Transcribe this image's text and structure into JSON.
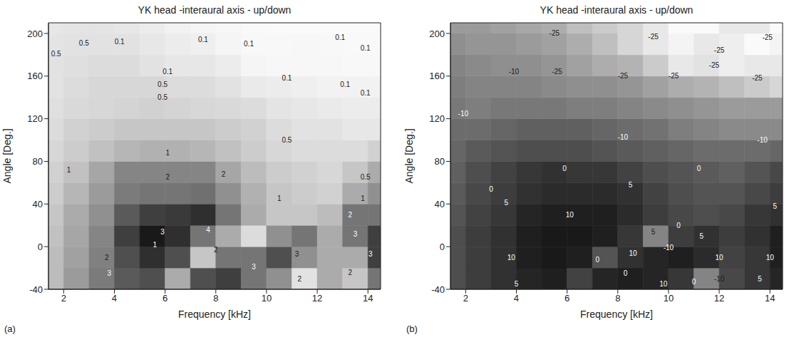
{
  "chart_data": [
    {
      "type": "heatmap",
      "panel": "(a)",
      "title": "YK head -interaural axis - up/down",
      "xlabel": "Frequency [kHz]",
      "ylabel": "Angle [Deg.]",
      "xlim": [
        1.4,
        14.5
      ],
      "xticks": [
        2,
        4,
        6,
        8,
        10,
        12,
        14
      ],
      "ylim": [
        -40,
        210
      ],
      "yticks": [
        -40,
        0,
        40,
        80,
        120,
        160,
        200
      ],
      "x": [
        1.5,
        2.5,
        3.5,
        4.5,
        5.5,
        6.5,
        7.5,
        8.5,
        9.5,
        10.5,
        11.5,
        12.5,
        13.5,
        14.5
      ],
      "y": [
        -30,
        -10,
        10,
        30,
        50,
        70,
        90,
        110,
        130,
        150,
        170,
        190,
        210
      ],
      "cells": [
        [
          1.2,
          1.8,
          2.4,
          3.0,
          3.2,
          1.5,
          3.2,
          3.5,
          2.5,
          2.0,
          0.5,
          1.5,
          1.0,
          2.5
        ],
        [
          1.2,
          1.7,
          2.3,
          3.2,
          3.8,
          3.2,
          1.0,
          2.5,
          2.5,
          3.2,
          2.0,
          1.5,
          1.5,
          3.5
        ],
        [
          1.1,
          1.6,
          2.2,
          3.5,
          4.2,
          3.8,
          2.5,
          1.5,
          0.6,
          2.0,
          2.5,
          1.5,
          2.5,
          3.5
        ],
        [
          1.0,
          1.5,
          2.0,
          3.0,
          3.5,
          3.6,
          3.8,
          2.5,
          1.5,
          1.0,
          1.0,
          1.2,
          2.5,
          2.5
        ],
        [
          0.9,
          1.3,
          1.8,
          2.4,
          2.5,
          2.5,
          2.6,
          2.0,
          1.4,
          1.0,
          0.9,
          0.8,
          1.5,
          2.0
        ],
        [
          0.8,
          1.1,
          1.6,
          2.2,
          2.2,
          2.2,
          2.2,
          1.6,
          1.2,
          0.9,
          0.8,
          0.7,
          1.0,
          1.5
        ],
        [
          0.7,
          0.9,
          1.1,
          1.3,
          1.4,
          1.4,
          1.3,
          1.1,
          0.9,
          0.7,
          0.6,
          0.6,
          0.6,
          0.8
        ],
        [
          0.6,
          0.8,
          0.9,
          1.0,
          1.0,
          1.0,
          1.0,
          0.9,
          0.8,
          0.6,
          0.5,
          0.5,
          0.4,
          0.4
        ],
        [
          0.55,
          0.65,
          0.7,
          0.75,
          0.8,
          0.75,
          0.7,
          0.65,
          0.6,
          0.45,
          0.4,
          0.35,
          0.3,
          0.3
        ],
        [
          0.5,
          0.6,
          0.7,
          0.7,
          0.7,
          0.6,
          0.6,
          0.5,
          0.35,
          0.3,
          0.25,
          0.2,
          0.2,
          0.2
        ],
        [
          0.5,
          0.55,
          0.6,
          0.6,
          0.5,
          0.4,
          0.4,
          0.3,
          0.15,
          0.1,
          0.1,
          0.1,
          0.08,
          0.08
        ],
        [
          0.45,
          0.5,
          0.5,
          0.5,
          0.4,
          0.3,
          0.25,
          0.15,
          0.08,
          0.08,
          0.1,
          0.08,
          0.06,
          0.06
        ],
        [
          0.4,
          0.45,
          0.45,
          0.4,
          0.3,
          0.2,
          0.15,
          0.1,
          0.06,
          0.05,
          0.05,
          0.05,
          0.05,
          0.05
        ]
      ],
      "annotations": [
        {
          "text": "0.5",
          "x": 1.7,
          "y": 181
        },
        {
          "text": "0.5",
          "x": 2.8,
          "y": 191
        },
        {
          "text": "0.5",
          "x": 5.9,
          "y": 152
        },
        {
          "text": "0.5",
          "x": 5.9,
          "y": 140
        },
        {
          "text": "0.5",
          "x": 13.9,
          "y": 65
        },
        {
          "text": "0.5",
          "x": 10.8,
          "y": 100
        },
        {
          "text": "0.1",
          "x": 4.2,
          "y": 192
        },
        {
          "text": "0.1",
          "x": 7.5,
          "y": 194
        },
        {
          "text": "0.1",
          "x": 9.3,
          "y": 190
        },
        {
          "text": "0.1",
          "x": 12.9,
          "y": 196
        },
        {
          "text": "0.1",
          "x": 13.9,
          "y": 186
        },
        {
          "text": "0.1",
          "x": 6.1,
          "y": 164
        },
        {
          "text": "0.1",
          "x": 10.8,
          "y": 158
        },
        {
          "text": "0.1",
          "x": 13.1,
          "y": 152
        },
        {
          "text": "0.1",
          "x": 13.9,
          "y": 144
        },
        {
          "text": "1",
          "x": 2.2,
          "y": 72
        },
        {
          "text": "1",
          "x": 6.1,
          "y": 88
        },
        {
          "text": "1",
          "x": 10.5,
          "y": 45
        },
        {
          "text": "1",
          "x": 13.8,
          "y": 45
        },
        {
          "text": "1",
          "x": 5.6,
          "y": 2
        },
        {
          "text": "2",
          "x": 6.1,
          "y": 65
        },
        {
          "text": "2",
          "x": 8.3,
          "y": 68
        },
        {
          "text": "2",
          "x": 3.7,
          "y": -10
        },
        {
          "text": "2",
          "x": 8.0,
          "y": -3
        },
        {
          "text": "2",
          "x": 11.3,
          "y": -30
        },
        {
          "text": "2",
          "x": 13.3,
          "y": 30
        },
        {
          "text": "2",
          "x": 13.3,
          "y": -24
        },
        {
          "text": "3",
          "x": 5.9,
          "y": 14
        },
        {
          "text": "3",
          "x": 3.8,
          "y": -25
        },
        {
          "text": "3",
          "x": 9.5,
          "y": -19
        },
        {
          "text": "3",
          "x": 11.2,
          "y": -7
        },
        {
          "text": "3",
          "x": 13.5,
          "y": 12
        },
        {
          "text": "3",
          "x": 14.1,
          "y": -7
        },
        {
          "text": "4",
          "x": 7.7,
          "y": 16
        }
      ]
    },
    {
      "type": "heatmap",
      "panel": "(b)",
      "title": "YK head -interaural axis - up/down",
      "xlabel": "Frequency [kHz]",
      "ylabel": "Angle [Deg.]",
      "xlim": [
        1.4,
        14.5
      ],
      "xticks": [
        2,
        4,
        6,
        8,
        10,
        12,
        14
      ],
      "ylim": [
        -40,
        210
      ],
      "yticks": [
        -40,
        0,
        40,
        80,
        120,
        160,
        200
      ],
      "x": [
        1.5,
        2.5,
        3.5,
        4.5,
        5.5,
        6.5,
        7.5,
        8.5,
        9.5,
        10.5,
        11.5,
        12.5,
        13.5,
        14.5
      ],
      "y": [
        -30,
        -10,
        10,
        30,
        50,
        70,
        90,
        110,
        130,
        150,
        170,
        190,
        210
      ],
      "cells": [
        [
          1,
          4,
          6,
          8,
          9,
          3,
          8,
          9,
          8,
          5,
          -8,
          2,
          5,
          8
        ],
        [
          1,
          4,
          6,
          9,
          10,
          9,
          0,
          6,
          8,
          9,
          7,
          3,
          5,
          9
        ],
        [
          1,
          4,
          6,
          9,
          10,
          10,
          9,
          5,
          -8,
          4,
          6,
          4,
          6,
          9
        ],
        [
          0,
          3,
          5,
          8,
          9,
          9,
          9,
          7,
          4,
          2,
          1,
          2,
          5,
          6
        ],
        [
          -1,
          2,
          4,
          6,
          7,
          7,
          7,
          6,
          3,
          1,
          0,
          0,
          2,
          4
        ],
        [
          -2,
          1,
          3,
          5,
          6,
          5,
          5,
          3,
          1,
          0,
          -1,
          -2,
          0,
          2
        ],
        [
          -3,
          -1,
          0,
          1,
          1,
          1,
          0,
          -1,
          -2,
          -3,
          -4,
          -4,
          -4,
          -3
        ],
        [
          -4,
          -4,
          -3,
          -2,
          -2,
          -2,
          -3,
          -4,
          -5,
          -7,
          -8,
          -9,
          -9,
          -9
        ],
        [
          -6,
          -7,
          -6,
          -6,
          -6,
          -7,
          -7,
          -8,
          -9,
          -10,
          -11,
          -12,
          -12,
          -12
        ],
        [
          -7,
          -8,
          -8,
          -8,
          -9,
          -10,
          -10,
          -11,
          -13,
          -15,
          -16,
          -18,
          -20,
          -22
        ],
        [
          -8,
          -9,
          -10,
          -10,
          -11,
          -13,
          -15,
          -16,
          -20,
          -25,
          -24,
          -26,
          -25,
          -25
        ],
        [
          -10,
          -11,
          -11,
          -12,
          -13,
          -15,
          -18,
          -22,
          -25,
          -27,
          -25,
          -26,
          -28,
          -27
        ],
        [
          -12,
          -12,
          -13,
          -14,
          -15,
          -18,
          -20,
          -22,
          -25,
          -28,
          -28,
          -25,
          -25,
          -28
        ]
      ],
      "annotations": [
        {
          "text": "-25",
          "x": 5.5,
          "y": 200
        },
        {
          "text": "-25",
          "x": 9.4,
          "y": 197
        },
        {
          "text": "-25",
          "x": 12.0,
          "y": 184
        },
        {
          "text": "-25",
          "x": 5.6,
          "y": 164
        },
        {
          "text": "-25",
          "x": 8.2,
          "y": 160
        },
        {
          "text": "-25",
          "x": 10.2,
          "y": 160
        },
        {
          "text": "-25",
          "x": 13.5,
          "y": 158
        },
        {
          "text": "-25",
          "x": 11.8,
          "y": 170
        },
        {
          "text": "-25",
          "x": 13.9,
          "y": 196
        },
        {
          "text": "-10",
          "x": 3.9,
          "y": 164
        },
        {
          "text": "-10",
          "x": 1.9,
          "y": 125
        },
        {
          "text": "-10",
          "x": 8.2,
          "y": 103
        },
        {
          "text": "-10",
          "x": 13.7,
          "y": 100
        },
        {
          "text": "-10",
          "x": 10.0,
          "y": -1
        },
        {
          "text": "-10",
          "x": 12.0,
          "y": -30
        },
        {
          "text": "0",
          "x": 5.9,
          "y": 73
        },
        {
          "text": "0",
          "x": 11.2,
          "y": 73
        },
        {
          "text": "0",
          "x": 3.0,
          "y": 54
        },
        {
          "text": "0",
          "x": 10.4,
          "y": 20
        },
        {
          "text": "0",
          "x": 7.2,
          "y": -12
        },
        {
          "text": "0",
          "x": 8.3,
          "y": -25
        },
        {
          "text": "0",
          "x": 11.0,
          "y": -33
        },
        {
          "text": "5",
          "x": 3.6,
          "y": 41
        },
        {
          "text": "5",
          "x": 8.5,
          "y": 58
        },
        {
          "text": "5",
          "x": 9.4,
          "y": 14
        },
        {
          "text": "5",
          "x": 11.3,
          "y": 10
        },
        {
          "text": "5",
          "x": 14.2,
          "y": 38
        },
        {
          "text": "5",
          "x": 4.0,
          "y": -35
        },
        {
          "text": "5",
          "x": 13.6,
          "y": -30
        },
        {
          "text": "10",
          "x": 6.1,
          "y": 30
        },
        {
          "text": "10",
          "x": 3.8,
          "y": -10
        },
        {
          "text": "10",
          "x": 8.6,
          "y": -6
        },
        {
          "text": "10",
          "x": 12.0,
          "y": -10
        },
        {
          "text": "10",
          "x": 14.0,
          "y": -10
        },
        {
          "text": "10",
          "x": 9.8,
          "y": -35
        }
      ]
    }
  ]
}
